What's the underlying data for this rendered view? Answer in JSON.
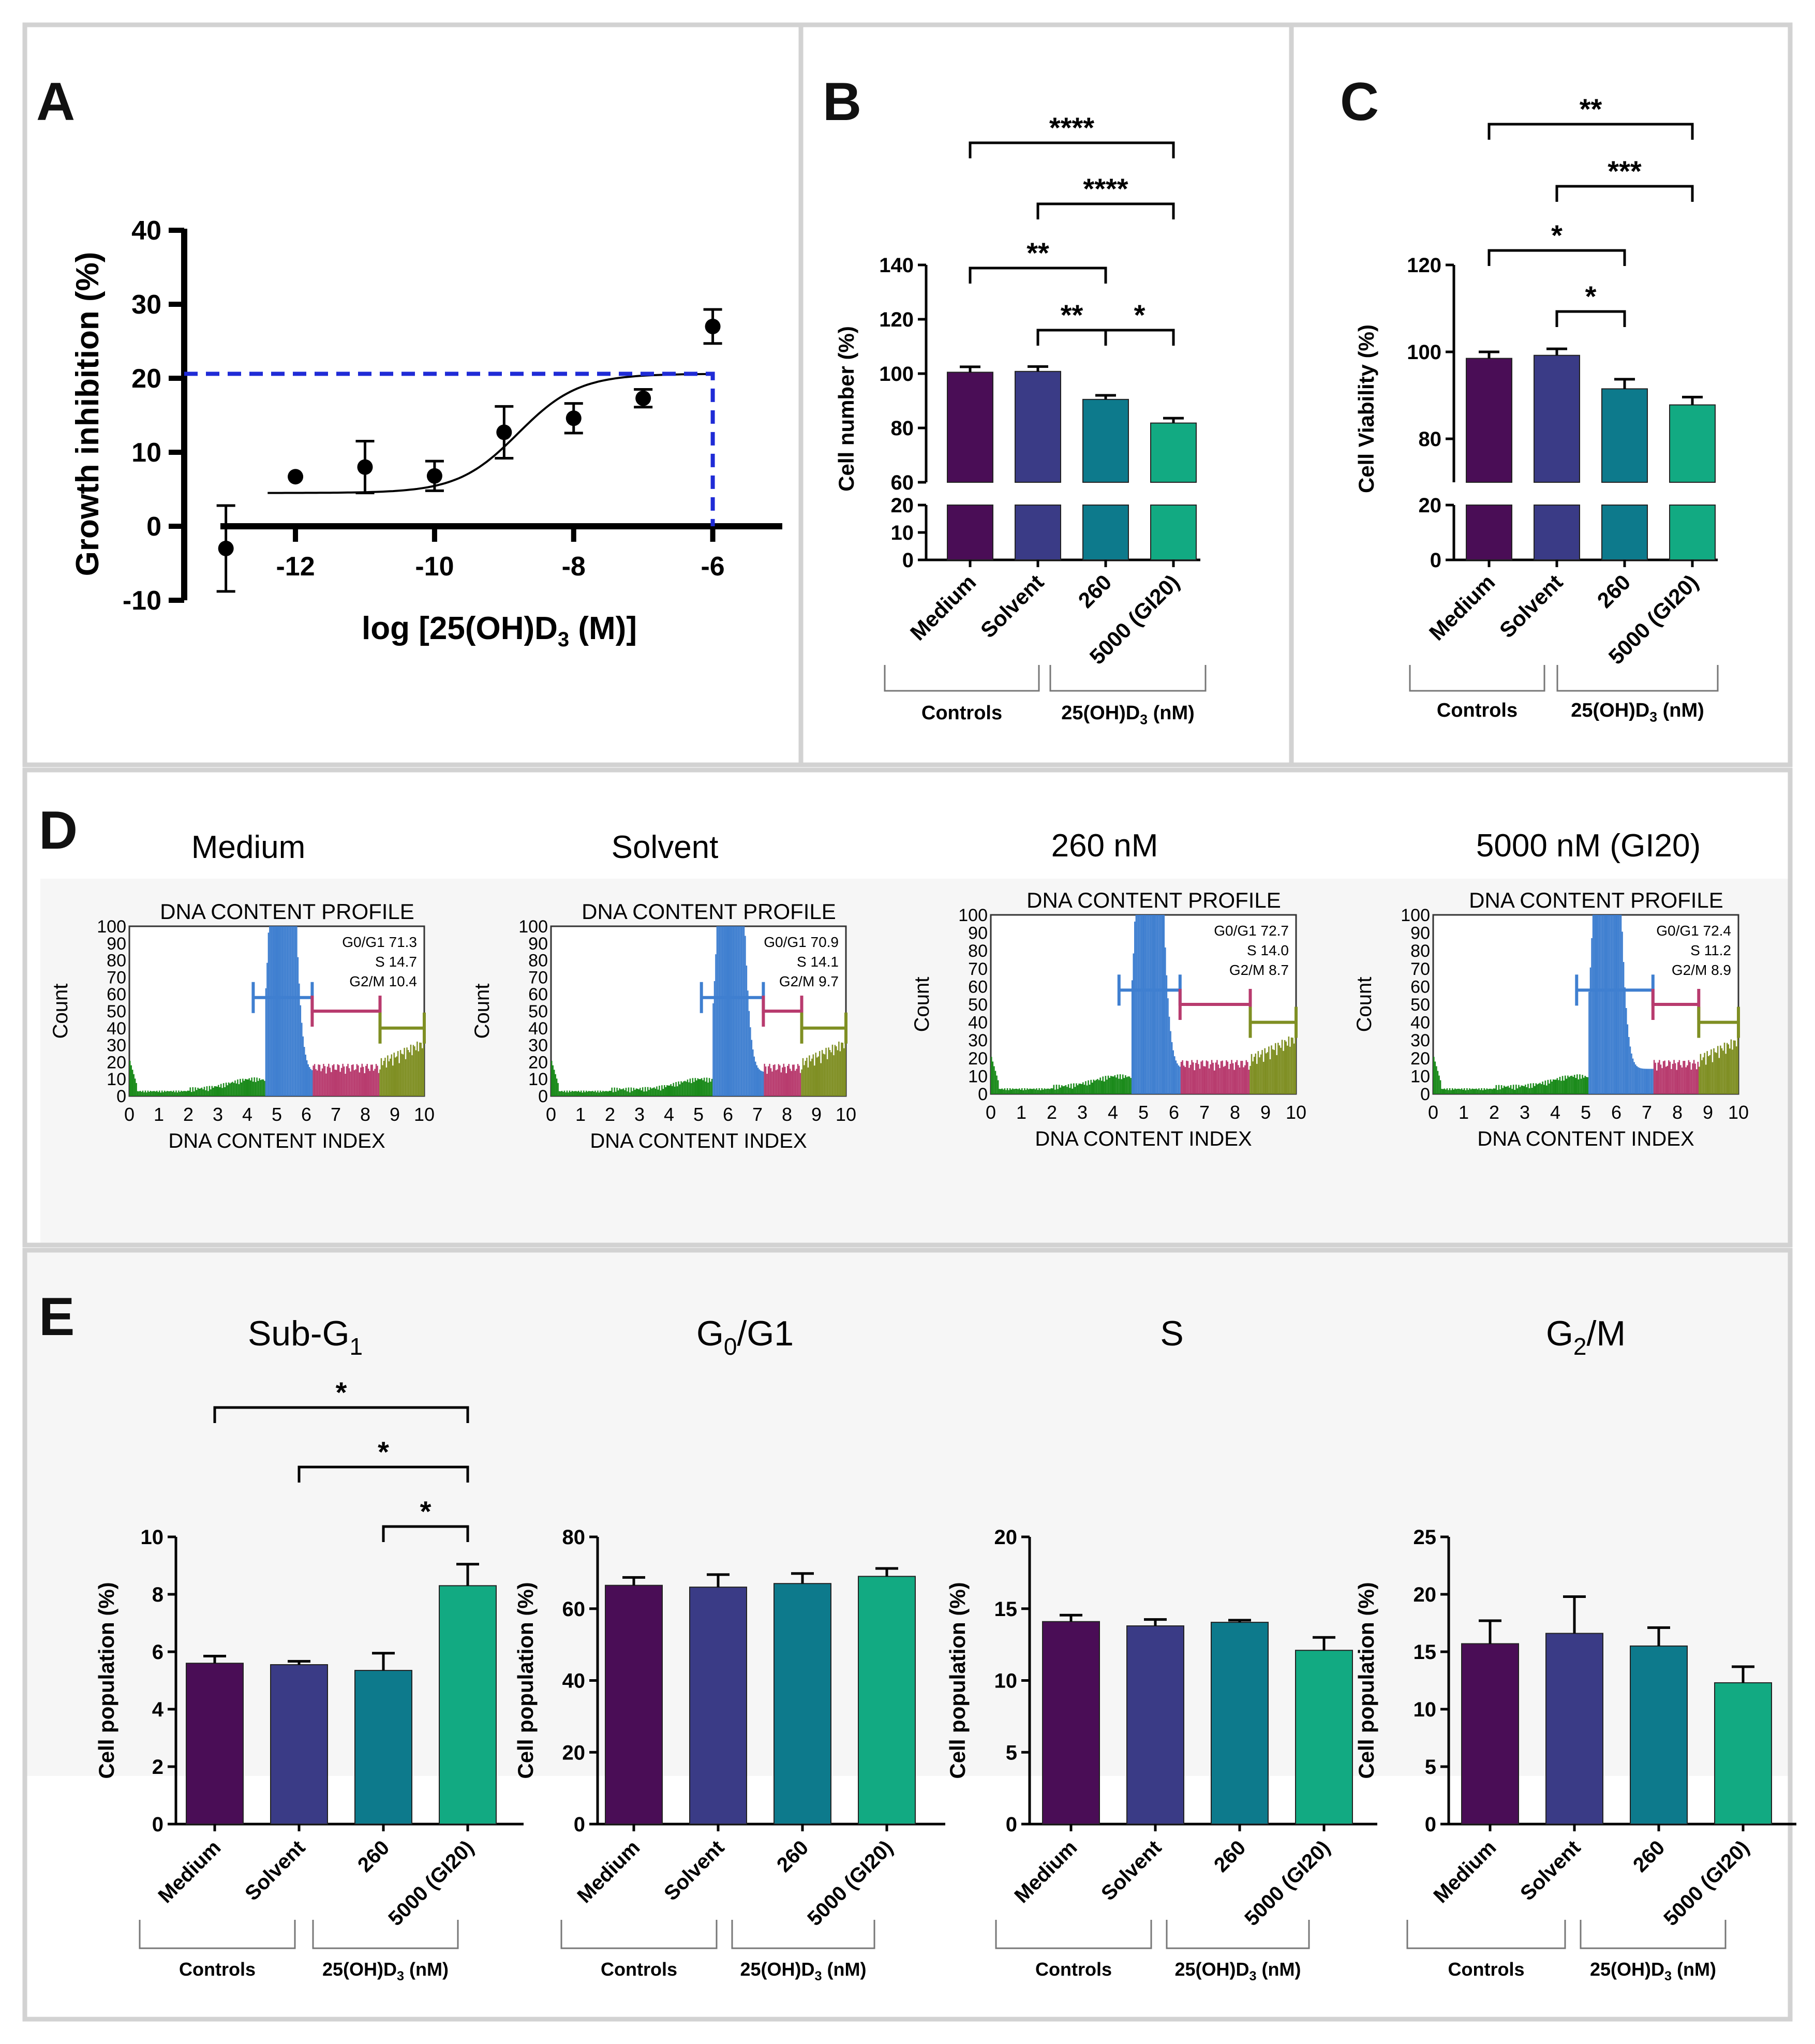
{
  "panel_labels": [
    "A",
    "B",
    "C",
    "D",
    "E"
  ],
  "colors": {
    "medium": "#4a0d56",
    "solvent": "#3a3b86",
    "c260": "#0d7a8c",
    "c5000": "#12aa82",
    "dashed": "#1f2bd6",
    "hist_green": "#1a8a1a",
    "hist_blue": "#3f7fd0",
    "hist_pink": "#b83b6e",
    "hist_olive": "#7f8f23",
    "panel_border": "#d0d0d0",
    "bg_light": "#f6f6f6"
  },
  "group_labels": {
    "categories": [
      "Medium",
      "Solvent",
      "260",
      "5000 (GI20)"
    ],
    "controls": "Controls",
    "treatment_prefix": "25(OH)D",
    "treatment_sub": "3",
    "treatment_suffix": " (nM)"
  },
  "chart_data": [
    {
      "id": "A",
      "type": "scatter",
      "ylabel": "Growth inhibition (%)",
      "xlabel_prefix": "log [25(OH)D",
      "xlabel_sub": "3",
      "xlabel_suffix": " (M)]",
      "ylim": [
        -10,
        40
      ],
      "xlim": [
        -13.6,
        -5
      ],
      "yticks": [
        -10,
        0,
        10,
        20,
        30,
        40
      ],
      "ytick_labels": [
        "-10",
        "0",
        "10",
        "20",
        "30",
        "40"
      ],
      "xticks": [
        -12,
        -10,
        -8,
        -6
      ],
      "xtick_labels": [
        "-12",
        "-10",
        "-8",
        "-6"
      ],
      "x": [
        -13,
        -12,
        -11,
        -10,
        -9,
        -8,
        -7,
        -6
      ],
      "y": [
        -3,
        6.7,
        8,
        6.8,
        12.7,
        14.6,
        17.3,
        27
      ],
      "err": [
        5.8,
        0,
        3.5,
        2,
        3.5,
        2,
        1.2,
        2.3
      ],
      "fit": {
        "bottom": 4.5,
        "top": 20.6,
        "logEC50": -8.8,
        "hill": 1
      },
      "gi20_level": 20.6,
      "gi20_x": -6
    },
    {
      "id": "B",
      "type": "bar",
      "ylabel": "Cell number (%)",
      "categories": [
        "Medium",
        "Solvent",
        "260",
        "5000 (GI20)"
      ],
      "values": [
        100.5,
        100.8,
        90.5,
        81.8
      ],
      "errors": [
        2,
        1.8,
        1.5,
        1.8
      ],
      "axis_upper": {
        "ylim": [
          60,
          140
        ],
        "ticks": [
          60,
          80,
          100,
          120,
          140
        ]
      },
      "axis_lower": {
        "ylim": [
          0,
          20
        ],
        "ticks": [
          0,
          10,
          20
        ]
      },
      "significance": [
        {
          "from": 0,
          "to": 3,
          "label": "****"
        },
        {
          "from": 1,
          "to": 3,
          "label": "****"
        },
        {
          "from": 0,
          "to": 2,
          "label": "**"
        },
        {
          "from": 1,
          "to": 2,
          "label": "**"
        },
        {
          "from": 2,
          "to": 3,
          "label": "*"
        }
      ]
    },
    {
      "id": "C",
      "type": "bar",
      "ylabel": "Cell Viability (%)",
      "categories": [
        "Medium",
        "Solvent",
        "260",
        "5000 (GI20)"
      ],
      "values": [
        98.5,
        99.2,
        91.5,
        87.8
      ],
      "errors": [
        1.5,
        1.5,
        2.2,
        1.8
      ],
      "axis_upper": {
        "ylim": [
          70,
          120
        ],
        "ticks": [
          80,
          100,
          120
        ]
      },
      "axis_lower": {
        "ylim": [
          0,
          20
        ],
        "ticks": [
          0,
          20
        ]
      },
      "significance": [
        {
          "from": 0,
          "to": 3,
          "label": "**"
        },
        {
          "from": 1,
          "to": 3,
          "label": "***"
        },
        {
          "from": 0,
          "to": 2,
          "label": "*"
        },
        {
          "from": 1,
          "to": 2,
          "label": "*"
        }
      ]
    },
    {
      "id": "D",
      "type": "histogram",
      "panel_title": "DNA CONTENT PROFILE",
      "xlabel": "DNA CONTENT INDEX",
      "ylabel": "Count",
      "xticks": [
        "0",
        "1",
        "2",
        "3",
        "4",
        "5",
        "6",
        "7",
        "8",
        "9",
        "10"
      ],
      "yticks": [
        "0",
        "10",
        "20",
        "30",
        "40",
        "50",
        "60",
        "70",
        "80",
        "90",
        "100"
      ],
      "profiles": [
        {
          "title": "Medium",
          "stats": [
            "G0/G1 71.3",
            "S 14.7",
            "G2/M 10.4"
          ],
          "peak": 5.2,
          "g1_end": 6.2,
          "s_end": 8.5
        },
        {
          "title": "Solvent",
          "stats": [
            "G0/G1 70.9",
            "S 14.1",
            "G2/M 9.7"
          ],
          "peak": 6.1,
          "g1_end": 7.2,
          "s_end": 8.5
        },
        {
          "title": "260 nM",
          "stats": [
            "G0/G1 72.7",
            "S 14.0",
            "G2/M 8.7"
          ],
          "peak": 5.2,
          "g1_end": 6.2,
          "s_end": 8.5
        },
        {
          "title": "5000 nM (GI20)",
          "stats": [
            "G0/G1 72.4",
            "S 11.2",
            "G2/M 8.9"
          ],
          "peak": 5.7,
          "g1_end": 7.2,
          "s_end": 8.7
        }
      ]
    },
    {
      "id": "E",
      "type": "bar",
      "ylabel": "Cell population (%)",
      "subplots": [
        {
          "title_main": "Sub-G",
          "title_sub": "1",
          "title_rest": "",
          "categories": [
            "Medium",
            "Solvent",
            "260",
            "5000 (GI20)"
          ],
          "values": [
            5.6,
            5.55,
            5.35,
            8.3
          ],
          "errors": [
            0.25,
            0.12,
            0.6,
            0.75
          ],
          "ylim": [
            0,
            10
          ],
          "ticks": [
            0,
            2,
            4,
            6,
            8,
            10
          ],
          "significance": [
            {
              "from": 0,
              "to": 3,
              "label": "*"
            },
            {
              "from": 1,
              "to": 3,
              "label": "*"
            },
            {
              "from": 2,
              "to": 3,
              "label": "*"
            }
          ]
        },
        {
          "title_main": "G",
          "title_sub": "0",
          "title_rest": "/G1",
          "categories": [
            "Medium",
            "Solvent",
            "260",
            "5000 (GI20)"
          ],
          "values": [
            66.5,
            66,
            67,
            69
          ],
          "errors": [
            2.2,
            3.5,
            2.8,
            2.2
          ],
          "ylim": [
            0,
            80
          ],
          "ticks": [
            0,
            20,
            40,
            60,
            80
          ],
          "significance": []
        },
        {
          "title_main": "S",
          "title_sub": "",
          "title_rest": "",
          "categories": [
            "Medium",
            "Solvent",
            "260",
            "5000 (GI20)"
          ],
          "values": [
            14.1,
            13.8,
            14.05,
            12.1
          ],
          "errors": [
            0.45,
            0.45,
            0.15,
            0.9
          ],
          "ylim": [
            0,
            20
          ],
          "ticks": [
            0,
            5,
            10,
            15,
            20
          ],
          "significance": []
        },
        {
          "title_main": "G",
          "title_sub": "2",
          "title_rest": "/M",
          "categories": [
            "Medium",
            "Solvent",
            "260",
            "5000 (GI20)"
          ],
          "values": [
            15.7,
            16.6,
            15.5,
            12.3
          ],
          "errors": [
            2,
            3.2,
            1.6,
            1.4
          ],
          "ylim": [
            0,
            25
          ],
          "ticks": [
            0,
            5,
            10,
            15,
            20,
            25
          ],
          "significance": []
        }
      ]
    }
  ]
}
